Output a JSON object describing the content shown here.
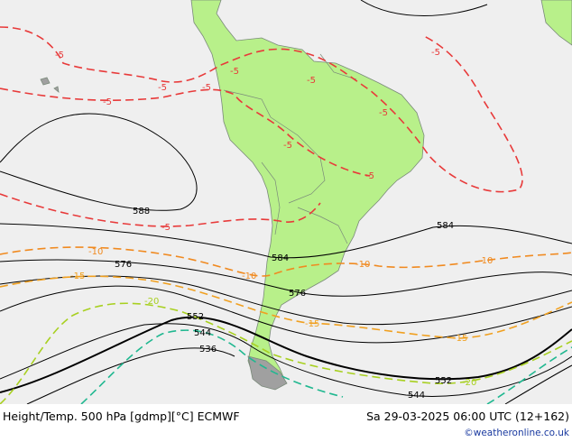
{
  "header": {
    "title": "Height/Temp. 500 hPa [gdmp][°C] ECMWF",
    "valid_time": "Sa 29-03-2025 06:00 UTC (12+162)",
    "credit": "©weatheronline.co.uk"
  },
  "colors": {
    "ocean": "#efefef",
    "land": "#b8f08a",
    "height_contour": "#000000",
    "temp_minus5": "#e83a3a",
    "temp_minus10": "#f08a20",
    "temp_minus15": "#f0a020",
    "temp_minus20": "#a8d020",
    "temp_minus25": "#20b890"
  },
  "height_labels": [
    "588",
    "584",
    "584",
    "576",
    "576",
    "552",
    "552",
    "544",
    "544",
    "536"
  ],
  "temp_labels": [
    "-5",
    "-5",
    "-5",
    "-5",
    "-5",
    "-5",
    "-5",
    "-5",
    "-5",
    "-5",
    "-5",
    "-10",
    "-10",
    "-10",
    "-10",
    "-15",
    "-15",
    "-15",
    "-20",
    "-20"
  ]
}
